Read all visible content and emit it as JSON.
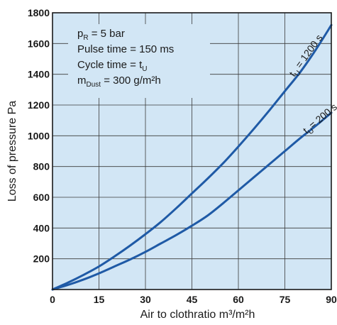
{
  "chart_data": {
    "type": "line",
    "xlabel": "Air to clothratio m³/m²h",
    "ylabel": "Loss of pressure Pa",
    "xlim": [
      0,
      90
    ],
    "ylim": [
      0,
      1800
    ],
    "x_ticks": [
      "0",
      "15",
      "30",
      "45",
      "60",
      "75",
      "90"
    ],
    "y_ticks": [
      "200",
      "400",
      "600",
      "800",
      "1000",
      "1200",
      "1400",
      "1600",
      "1800"
    ],
    "grid": true,
    "series": [
      {
        "name": "tU = 1200 s",
        "label_main": "t",
        "label_sub": "U",
        "label_rest": " = 1200 s",
        "color": "#1f5aa6",
        "points": [
          [
            0,
            0
          ],
          [
            5,
            45
          ],
          [
            10,
            95
          ],
          [
            15,
            150
          ],
          [
            20,
            215
          ],
          [
            25,
            285
          ],
          [
            30,
            360
          ],
          [
            35,
            440
          ],
          [
            40,
            530
          ],
          [
            45,
            625
          ],
          [
            50,
            720
          ],
          [
            55,
            820
          ],
          [
            60,
            930
          ],
          [
            65,
            1045
          ],
          [
            70,
            1165
          ],
          [
            75,
            1290
          ],
          [
            80,
            1415
          ],
          [
            85,
            1560
          ],
          [
            90,
            1720
          ]
        ]
      },
      {
        "name": "tU = 200 s",
        "label_main": "t",
        "label_sub": "U",
        "label_rest": "= 200 s",
        "color": "#1f5aa6",
        "points": [
          [
            0,
            0
          ],
          [
            5,
            30
          ],
          [
            10,
            65
          ],
          [
            15,
            105
          ],
          [
            20,
            150
          ],
          [
            25,
            195
          ],
          [
            30,
            245
          ],
          [
            35,
            300
          ],
          [
            40,
            355
          ],
          [
            45,
            415
          ],
          [
            50,
            480
          ],
          [
            55,
            560
          ],
          [
            60,
            645
          ],
          [
            65,
            730
          ],
          [
            70,
            815
          ],
          [
            75,
            900
          ],
          [
            80,
            985
          ],
          [
            85,
            1065
          ],
          [
            90,
            1150
          ]
        ]
      }
    ],
    "annotations": [
      {
        "main": "p",
        "sub": "R",
        "rest": " = 5 bar"
      },
      {
        "main": "Pulse time = 150 ms",
        "sub": "",
        "rest": ""
      },
      {
        "main": "Cycle time = t",
        "sub": "U",
        "rest": ""
      },
      {
        "main": "m",
        "sub": "Dust",
        "rest": " = 300 g/m²h"
      }
    ],
    "colors": {
      "background": "#d2e6f5",
      "grid": "#3a3a3a",
      "curve": "#1f5aa6"
    }
  }
}
